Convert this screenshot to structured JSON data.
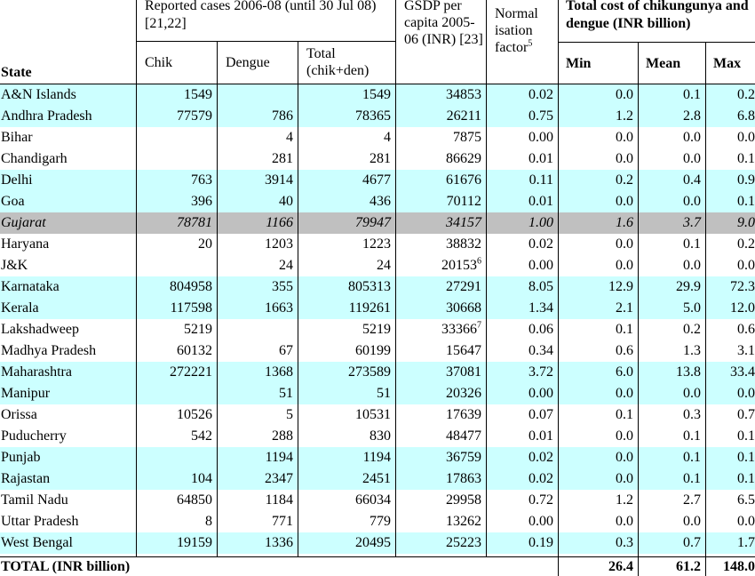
{
  "header": {
    "state": "State",
    "reported_group": "Reported cases 2006-08 (until 30 Jul 08) [21,22]",
    "chik": "Chik",
    "dengue": "Dengue",
    "total": "Total (chik+den)",
    "gsdp": "GSDP per capita 2005-06 (INR) [23]",
    "norm": "Normal isation factor",
    "norm_sup": "5",
    "cost_group": "Total cost of chikungunya and dengue (INR billion)",
    "min": "Min",
    "mean": "Mean",
    "max": "Max"
  },
  "rows": [
    {
      "state": "A&N Islands",
      "chik": "1549",
      "dengue": "",
      "total": "1549",
      "gsdp": "34853",
      "gsdp_sup": "",
      "norm": "0.02",
      "min": "0.0",
      "mean": "0.1",
      "max": "0.2",
      "style": "cyan"
    },
    {
      "state": "Andhra Pradesh",
      "chik": "77579",
      "dengue": "786",
      "total": "78365",
      "gsdp": "26211",
      "gsdp_sup": "",
      "norm": "0.75",
      "min": "1.2",
      "mean": "2.8",
      "max": "6.8",
      "style": "cyan"
    },
    {
      "state": "Bihar",
      "chik": "",
      "dengue": "4",
      "total": "4",
      "gsdp": "7875",
      "gsdp_sup": "",
      "norm": "0.00",
      "min": "0.0",
      "mean": "0.0",
      "max": "0.0",
      "style": "white"
    },
    {
      "state": "Chandigarh",
      "chik": "",
      "dengue": "281",
      "total": "281",
      "gsdp": "86629",
      "gsdp_sup": "",
      "norm": "0.01",
      "min": "0.0",
      "mean": "0.0",
      "max": "0.1",
      "style": "white"
    },
    {
      "state": "Delhi",
      "chik": "763",
      "dengue": "3914",
      "total": "4677",
      "gsdp": "61676",
      "gsdp_sup": "",
      "norm": "0.11",
      "min": "0.2",
      "mean": "0.4",
      "max": "0.9",
      "style": "cyan"
    },
    {
      "state": "Goa",
      "chik": "396",
      "dengue": "40",
      "total": "436",
      "gsdp": "70112",
      "gsdp_sup": "",
      "norm": "0.01",
      "min": "0.0",
      "mean": "0.0",
      "max": "0.1",
      "style": "cyan"
    },
    {
      "state": "Gujarat",
      "chik": "78781",
      "dengue": "1166",
      "total": "79947",
      "gsdp": "34157",
      "gsdp_sup": "",
      "norm": "1.00",
      "min": "1.6",
      "mean": "3.7",
      "max": "9.0",
      "style": "grey"
    },
    {
      "state": "Haryana",
      "chik": "20",
      "dengue": "1203",
      "total": "1223",
      "gsdp": "38832",
      "gsdp_sup": "",
      "norm": "0.02",
      "min": "0.0",
      "mean": "0.1",
      "max": "0.2",
      "style": "white"
    },
    {
      "state": "J&K",
      "chik": "",
      "dengue": "24",
      "total": "24",
      "gsdp": "20153",
      "gsdp_sup": "6",
      "norm": "0.00",
      "min": "0.0",
      "mean": "0.0",
      "max": "0.0",
      "style": "white"
    },
    {
      "state": "Karnataka",
      "chik": "804958",
      "dengue": "355",
      "total": "805313",
      "gsdp": "27291",
      "gsdp_sup": "",
      "norm": "8.05",
      "min": "12.9",
      "mean": "29.9",
      "max": "72.3",
      "style": "cyan"
    },
    {
      "state": "Kerala",
      "chik": "117598",
      "dengue": "1663",
      "total": "119261",
      "gsdp": "30668",
      "gsdp_sup": "",
      "norm": "1.34",
      "min": "2.1",
      "mean": "5.0",
      "max": "12.0",
      "style": "cyan"
    },
    {
      "state": "Lakshadweep",
      "chik": "5219",
      "dengue": "",
      "total": "5219",
      "gsdp": "33366",
      "gsdp_sup": "7",
      "norm": "0.06",
      "min": "0.1",
      "mean": "0.2",
      "max": "0.6",
      "style": "white"
    },
    {
      "state": "Madhya Pradesh",
      "chik": "60132",
      "dengue": "67",
      "total": "60199",
      "gsdp": "15647",
      "gsdp_sup": "",
      "norm": "0.34",
      "min": "0.6",
      "mean": "1.3",
      "max": "3.1",
      "style": "white"
    },
    {
      "state": "Maharashtra",
      "chik": "272221",
      "dengue": "1368",
      "total": "273589",
      "gsdp": "37081",
      "gsdp_sup": "",
      "norm": "3.72",
      "min": "6.0",
      "mean": "13.8",
      "max": "33.4",
      "style": "cyan"
    },
    {
      "state": "Manipur",
      "chik": "",
      "dengue": "51",
      "total": "51",
      "gsdp": "20326",
      "gsdp_sup": "",
      "norm": "0.00",
      "min": "0.0",
      "mean": "0.0",
      "max": "0.0",
      "style": "cyan"
    },
    {
      "state": "Orissa",
      "chik": "10526",
      "dengue": "5",
      "total": "10531",
      "gsdp": "17639",
      "gsdp_sup": "",
      "norm": "0.07",
      "min": "0.1",
      "mean": "0.3",
      "max": "0.7",
      "style": "white"
    },
    {
      "state": "Puducherry",
      "chik": "542",
      "dengue": "288",
      "total": "830",
      "gsdp": "48477",
      "gsdp_sup": "",
      "norm": "0.01",
      "min": "0.0",
      "mean": "0.1",
      "max": "0.1",
      "style": "white"
    },
    {
      "state": "Punjab",
      "chik": "",
      "dengue": "1194",
      "total": "1194",
      "gsdp": "36759",
      "gsdp_sup": "",
      "norm": "0.02",
      "min": "0.0",
      "mean": "0.1",
      "max": "0.1",
      "style": "cyan"
    },
    {
      "state": "Rajastan",
      "chik": "104",
      "dengue": "2347",
      "total": "2451",
      "gsdp": "17863",
      "gsdp_sup": "",
      "norm": "0.02",
      "min": "0.0",
      "mean": "0.1",
      "max": "0.1",
      "style": "cyan"
    },
    {
      "state": "Tamil Nadu",
      "chik": "64850",
      "dengue": "1184",
      "total": "66034",
      "gsdp": "29958",
      "gsdp_sup": "",
      "norm": "0.72",
      "min": "1.2",
      "mean": "2.7",
      "max": "6.5",
      "style": "white"
    },
    {
      "state": "Uttar Pradesh",
      "chik": "8",
      "dengue": "771",
      "total": "779",
      "gsdp": "13262",
      "gsdp_sup": "",
      "norm": "0.00",
      "min": "0.0",
      "mean": "0.0",
      "max": "0.0",
      "style": "white"
    },
    {
      "state": "West Bengal",
      "chik": "19159",
      "dengue": "1336",
      "total": "20495",
      "gsdp": "25223",
      "gsdp_sup": "",
      "norm": "0.19",
      "min": "0.3",
      "mean": "0.7",
      "max": "1.7",
      "style": "cyan"
    }
  ],
  "total_row": {
    "label": "TOTAL (INR billion)",
    "min": "26.4",
    "mean": "61.2",
    "max": "148.0"
  }
}
